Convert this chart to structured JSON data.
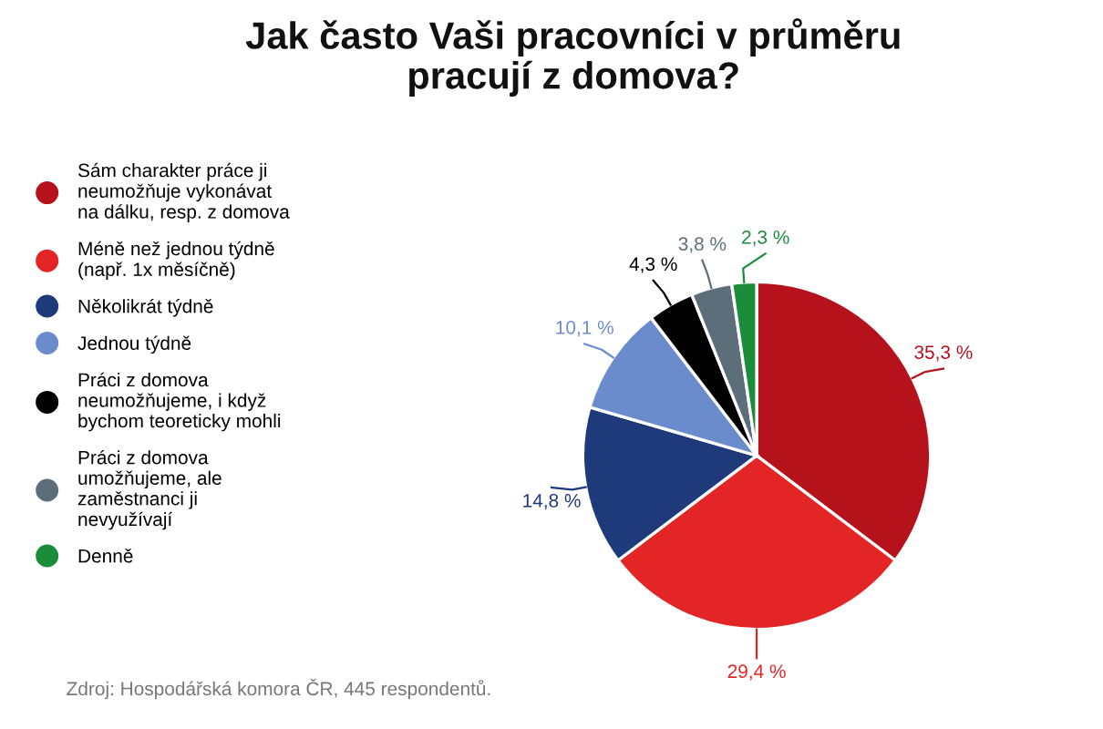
{
  "chart_data": {
    "type": "pie",
    "title": "Jak často Vaši pracovníci v průměru\npracují z domova?",
    "categories": [
      "Sám charakter práce ji\nneumožňuje vykonávat\nna dálku, resp. z domova",
      "Méně než jednou týdně\n(např. 1x měsíčně)",
      "Několikrát týdně",
      "Jednou týdně",
      "Práci z domova\nneumožňujeme, i když\nbychom teoreticky mohli",
      "Práci z domova\numožňujeme, ale\nzaměstnanci ji\nnevyužívají",
      "Denně"
    ],
    "values": [
      35.3,
      29.4,
      14.8,
      10.1,
      4.3,
      3.8,
      2.3
    ],
    "value_labels": [
      "35,3 %",
      "29,4 %",
      "14,8 %",
      "10,1 %",
      "4,3 %",
      "3,8 %",
      "2,3 %"
    ],
    "colors": [
      "#b5121b",
      "#e32526",
      "#1f3a7a",
      "#6b8ccc",
      "#000000",
      "#5b6e7a",
      "#1a8c3a"
    ],
    "legend": "left",
    "annotations": [
      "Zdroj: Hospodářská komora ČR, 445 respondentů."
    ]
  }
}
